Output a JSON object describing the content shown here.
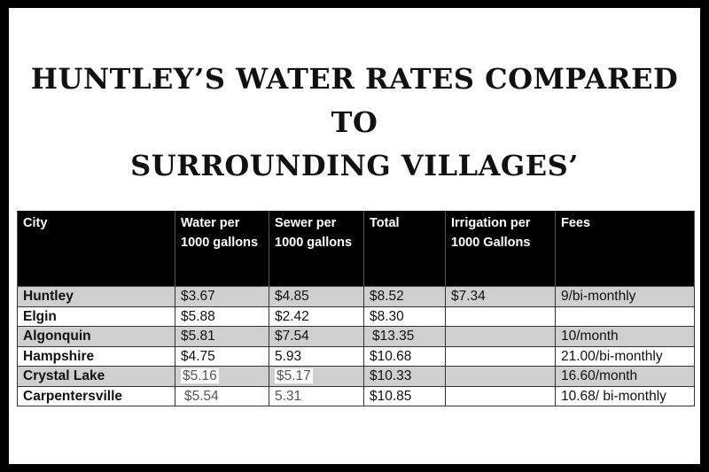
{
  "title": {
    "line1": "HUNTLEY’S WATER RATES COMPARED",
    "line2": "TO",
    "line3": "SURROUNDING VILLAGES’"
  },
  "table": {
    "headers": [
      "City",
      "Water per 1000 gallons",
      "Sewer per 1000 gallons",
      "Total",
      "Irrigation per 1000 Gallons",
      "Fees"
    ],
    "rows": [
      [
        "Huntley",
        "$3.67",
        "$4.85",
        "$8.52",
        "$7.34",
        "9/bi-monthly"
      ],
      [
        "Elgin",
        "$5.88",
        "$2.42",
        "$8.30",
        "",
        ""
      ],
      [
        "Algonquin",
        "$5.81",
        "$7.54",
        "$13.35",
        "",
        "10/month"
      ],
      [
        "Hampshire",
        "$4.75",
        "5.93",
        "$10.68",
        "",
        "21.00/bi-monthly"
      ],
      [
        "Crystal Lake",
        "$5.16",
        "$5.17",
        "$10.33",
        "",
        "16.60/month"
      ],
      [
        "Carpentersville",
        "$5.54",
        "5.31",
        "$10.85",
        "",
        "10.68/ bi-monthly"
      ]
    ]
  }
}
